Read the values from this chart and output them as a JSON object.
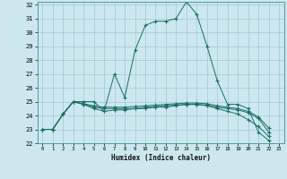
{
  "xlabel": "Humidex (Indice chaleur)",
  "background_color": "#cce8ee",
  "grid_color": "#a0c8d0",
  "line_color": "#1a6e64",
  "xmin": 0,
  "xmax": 23,
  "ymin": 22,
  "ymax": 32,
  "series": [
    [
      23.0,
      23.0,
      24.1,
      25.0,
      25.0,
      25.0,
      24.3,
      27.0,
      25.3,
      28.7,
      30.5,
      30.8,
      30.8,
      31.0,
      32.2,
      31.3,
      29.0,
      26.5,
      24.8,
      24.8,
      24.5,
      22.8,
      22.2
    ],
    [
      23.0,
      23.0,
      24.1,
      25.0,
      24.8,
      24.5,
      24.3,
      24.4,
      24.4,
      24.5,
      24.5,
      24.6,
      24.6,
      24.7,
      24.8,
      24.8,
      24.7,
      24.5,
      24.3,
      24.1,
      23.7,
      23.2,
      22.5
    ],
    [
      23.0,
      23.0,
      24.1,
      25.0,
      24.8,
      24.6,
      24.5,
      24.5,
      24.5,
      24.5,
      24.6,
      24.65,
      24.7,
      24.75,
      24.8,
      24.8,
      24.75,
      24.6,
      24.5,
      24.4,
      24.2,
      23.8,
      22.8
    ],
    [
      23.0,
      23.0,
      24.1,
      25.0,
      24.85,
      24.7,
      24.6,
      24.6,
      24.6,
      24.65,
      24.7,
      24.75,
      24.8,
      24.85,
      24.9,
      24.9,
      24.85,
      24.7,
      24.6,
      24.5,
      24.3,
      23.9,
      23.1
    ]
  ]
}
